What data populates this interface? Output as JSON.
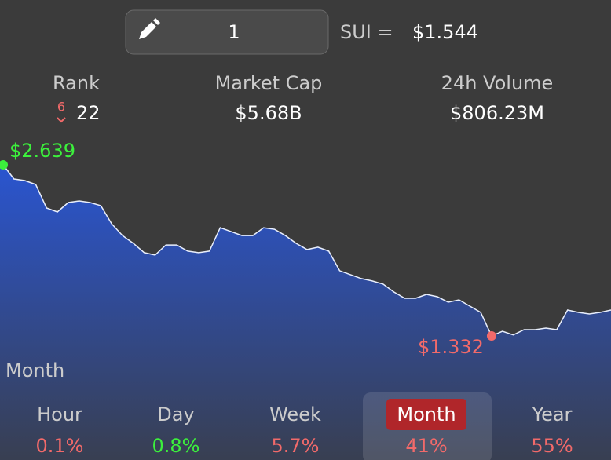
{
  "amount": "1",
  "pair": "SUI =",
  "price": "$1.544",
  "stats": [
    {
      "label": "Rank",
      "change": "6",
      "value": "22"
    },
    {
      "label": "Market Cap",
      "value": "$5.68B"
    },
    {
      "label": "24h Volume",
      "value": "$806.23M"
    }
  ],
  "chart_data": {
    "type": "area",
    "color": "#2a55d0",
    "values": [
      2.639,
      2.531,
      2.519,
      2.489,
      2.309,
      2.279,
      2.351,
      2.363,
      2.351,
      2.327,
      2.189,
      2.099,
      2.039,
      1.968,
      1.95,
      2.027,
      2.027,
      1.98,
      1.968,
      1.98,
      2.159,
      2.129,
      2.099,
      2.099,
      2.159,
      2.147,
      2.099,
      2.039,
      1.992,
      2.01,
      1.98,
      1.83,
      1.8,
      1.77,
      1.752,
      1.728,
      1.668,
      1.62,
      1.62,
      1.65,
      1.632,
      1.59,
      1.608,
      1.56,
      1.512,
      1.332,
      1.368,
      1.34,
      1.38,
      1.38,
      1.392,
      1.38,
      1.53,
      1.512,
      1.5,
      1.512,
      1.53
    ],
    "value_labels": [
      "$2.639",
      null,
      null,
      null,
      null,
      null,
      null,
      null,
      null,
      null,
      null,
      null,
      null,
      null,
      null,
      null,
      null,
      null,
      null,
      null,
      null,
      null,
      null,
      null,
      null,
      null,
      null,
      null,
      null,
      null,
      null,
      null,
      null,
      null,
      null,
      null,
      null,
      null,
      null,
      null,
      null,
      null,
      null,
      null,
      null,
      "$1.332",
      null,
      null,
      null,
      null,
      null,
      null,
      null,
      null,
      null,
      null,
      null
    ],
    "value_label_colors": [
      "#3cf03c",
      "#f26a6a"
    ],
    "period": "Month"
  },
  "tabs": [
    {
      "name": "Hour",
      "change": "0.1%",
      "color": "#f26a6a"
    },
    {
      "name": "Day",
      "change": "0.8%",
      "color": "#3cf03c"
    },
    {
      "name": "Week",
      "change": "5.7%",
      "color": "#f26a6a"
    },
    {
      "name": "Month",
      "change": "41%",
      "color": "#f26a6a",
      "selected": true
    },
    {
      "name": "Year",
      "change": "55%",
      "color": "#f26a6a"
    }
  ]
}
